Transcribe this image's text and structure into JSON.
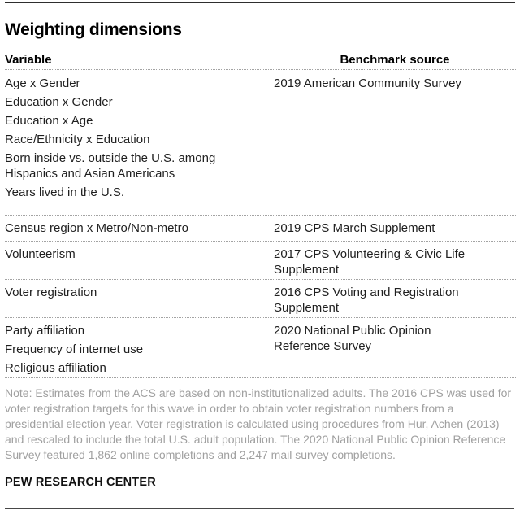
{
  "chart_data": {
    "type": "table",
    "title": "Weighting dimensions",
    "columns": [
      "Variable",
      "Benchmark source"
    ],
    "rows": [
      {
        "variables": [
          "Age x Gender",
          "Education x Gender",
          "Education x Age",
          "Race/Ethnicity x Education",
          "Born inside vs. outside the U.S. among\nHispanics and Asian Americans",
          "Years lived in the U.S."
        ],
        "source": "2019 American Community Survey"
      },
      {
        "variables": [
          "Census region x Metro/Non-metro"
        ],
        "source": "2019 CPS March Supplement"
      },
      {
        "variables": [
          "Volunteerism"
        ],
        "source": "2017 CPS Volunteering & Civic Life\nSupplement"
      },
      {
        "variables": [
          "Voter registration"
        ],
        "source": "2016 CPS Voting and Registration\nSupplement"
      },
      {
        "variables": [
          "Party affiliation",
          "Frequency of internet use",
          "Religious affiliation"
        ],
        "source": "2020 National Public Opinion\nReference Survey"
      }
    ],
    "layout": {
      "grid": "off",
      "legend": "none"
    }
  },
  "note": "Note: Estimates from the ACS are based on non-institutionalized adults.  The 2016 CPS was used for voter registration targets for this wave in order to obtain voter registration numbers from a presidential election year. Voter registration is calculated using procedures from Hur, Achen (2013) and rescaled to include the total U.S. adult population. The 2020 National Public Opinion Reference Survey featured 1,862 online completions and 2,247 mail survey completions.",
  "footer": "PEW RESEARCH CENTER",
  "colors": {
    "text": "#1f1f1f",
    "note": "#a0a0a0",
    "rule": "#2e2e2e",
    "rule2": "#474747",
    "dotted": "#a3a3a3"
  }
}
